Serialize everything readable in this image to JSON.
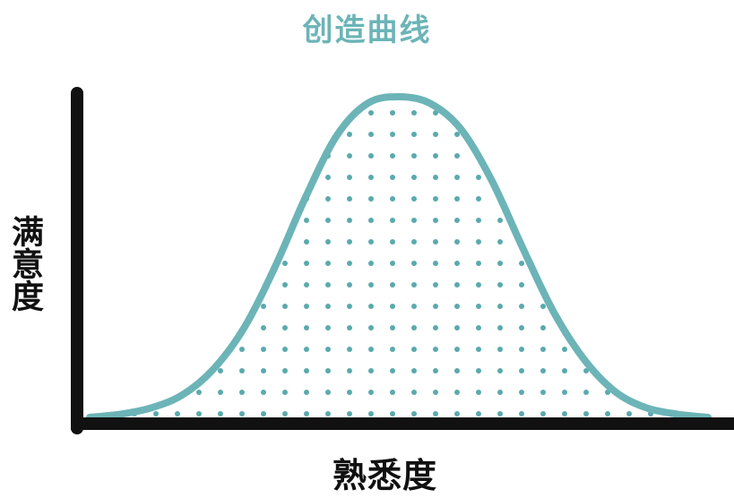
{
  "chart_data": {
    "type": "area",
    "title": "创造曲线",
    "xlabel": "熟悉度",
    "ylabel": "满意度",
    "fill_pattern": "dotted",
    "grid": false,
    "legend": "none",
    "curve_shape": "bell",
    "series": [
      {
        "x": [
          0.0,
          0.05,
          0.1,
          0.15,
          0.2,
          0.25,
          0.3,
          0.35,
          0.4,
          0.45,
          0.5,
          0.55,
          0.6,
          0.65,
          0.7,
          0.75,
          0.8,
          0.85,
          0.9,
          0.95,
          1.0
        ],
        "values": [
          0.0,
          0.01,
          0.03,
          0.07,
          0.15,
          0.28,
          0.47,
          0.69,
          0.88,
          0.98,
          1.0,
          0.98,
          0.9,
          0.74,
          0.53,
          0.33,
          0.18,
          0.08,
          0.03,
          0.01,
          0.0
        ]
      }
    ],
    "xlim": [
      0,
      1
    ],
    "ylim": [
      0,
      1
    ]
  },
  "colors": {
    "curve": "#6cb4b7",
    "dots": "#5aaaae",
    "axis": "#111111",
    "title": "#6cb4b7"
  }
}
